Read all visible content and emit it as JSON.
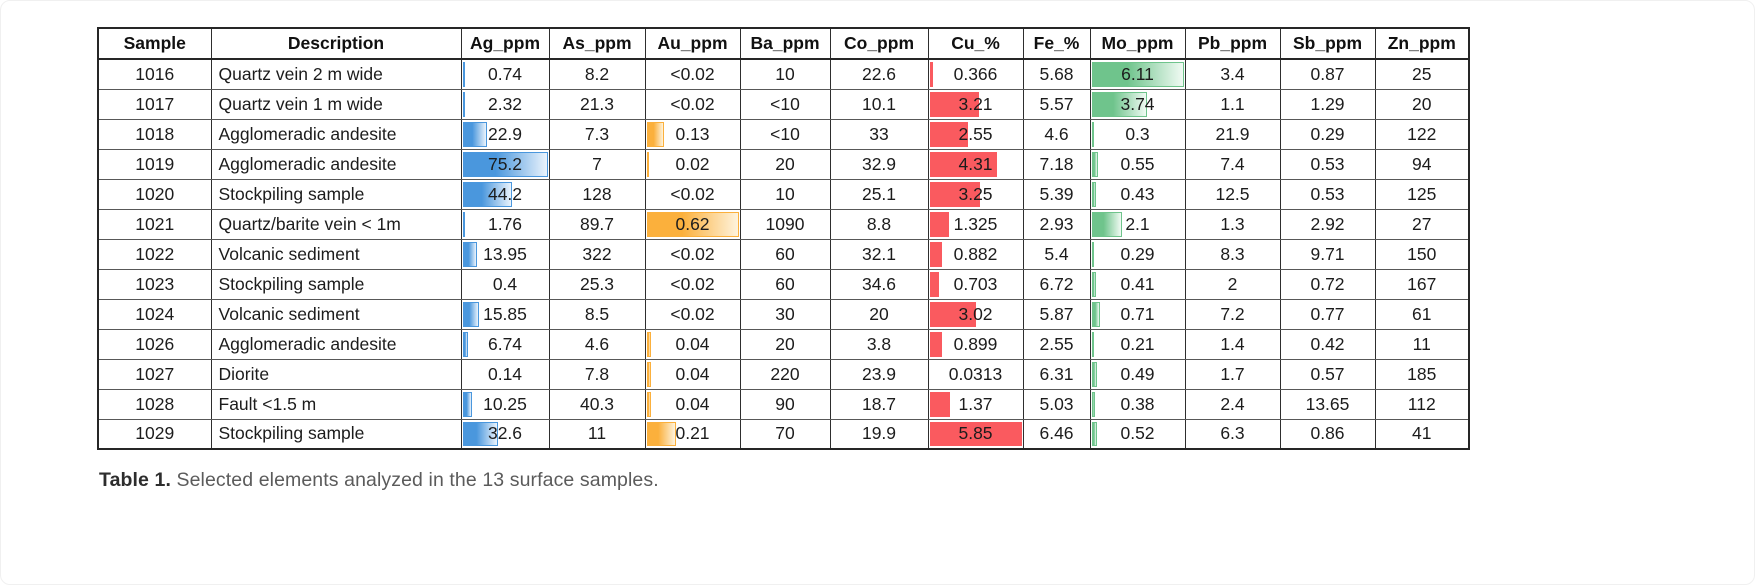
{
  "chart_data": {
    "type": "table",
    "title": "Table 1. Selected elements analyzed in the 13 surface samples.",
    "columns": [
      "Sample",
      "Description",
      "Ag_ppm",
      "As_ppm",
      "Au_ppm",
      "Ba_ppm",
      "Co_ppm",
      "Cu_%",
      "Fe_%",
      "Mo_ppm",
      "Pb_ppm",
      "Sb_ppm",
      "Zn_ppm"
    ],
    "rows": [
      [
        "1016",
        "Quartz vein 2 m wide",
        "0.74",
        "8.2",
        "<0.02",
        "10",
        "22.6",
        "0.366",
        "5.68",
        "6.11",
        "3.4",
        "0.87",
        "25"
      ],
      [
        "1017",
        "Quartz vein 1 m wide",
        "2.32",
        "21.3",
        "<0.02",
        "<10",
        "10.1",
        "3.21",
        "5.57",
        "3.74",
        "1.1",
        "1.29",
        "20"
      ],
      [
        "1018",
        "Agglomeradic andesite",
        "22.9",
        "7.3",
        "0.13",
        "<10",
        "33",
        "2.55",
        "4.6",
        "0.3",
        "21.9",
        "0.29",
        "122"
      ],
      [
        "1019",
        "Agglomeradic andesite",
        "75.2",
        "7",
        "0.02",
        "20",
        "32.9",
        "4.31",
        "7.18",
        "0.55",
        "7.4",
        "0.53",
        "94"
      ],
      [
        "1020",
        "Stockpiling sample",
        "44.2",
        "128",
        "<0.02",
        "10",
        "25.1",
        "3.25",
        "5.39",
        "0.43",
        "12.5",
        "0.53",
        "125"
      ],
      [
        "1021",
        "Quartz/barite vein < 1m",
        "1.76",
        "89.7",
        "0.62",
        "1090",
        "8.8",
        "1.325",
        "2.93",
        "2.1",
        "1.3",
        "2.92",
        "27"
      ],
      [
        "1022",
        "Volcanic sediment",
        "13.95",
        "322",
        "<0.02",
        "60",
        "32.1",
        "0.882",
        "5.4",
        "0.29",
        "8.3",
        "9.71",
        "150"
      ],
      [
        "1023",
        "Stockpiling sample",
        "0.4",
        "25.3",
        "<0.02",
        "60",
        "34.6",
        "0.703",
        "6.72",
        "0.41",
        "2",
        "0.72",
        "167"
      ],
      [
        "1024",
        "Volcanic sediment",
        "15.85",
        "8.5",
        "<0.02",
        "30",
        "20",
        "3.02",
        "5.87",
        "0.71",
        "7.2",
        "0.77",
        "61"
      ],
      [
        "1026",
        "Agglomeradic andesite",
        "6.74",
        "4.6",
        "0.04",
        "20",
        "3.8",
        "0.899",
        "2.55",
        "0.21",
        "1.4",
        "0.42",
        "11"
      ],
      [
        "1027",
        "Diorite",
        "0.14",
        "7.8",
        "0.04",
        "220",
        "23.9",
        "0.0313",
        "6.31",
        "0.49",
        "1.7",
        "0.57",
        "185"
      ],
      [
        "1028",
        "Fault <1.5 m",
        "10.25",
        "40.3",
        "0.04",
        "90",
        "18.7",
        "1.37",
        "5.03",
        "0.38",
        "2.4",
        "13.65",
        "112"
      ],
      [
        "1029",
        "Stockpiling sample",
        "32.6",
        "11",
        "0.21",
        "70",
        "19.9",
        "5.85",
        "6.46",
        "0.52",
        "6.3",
        "0.86",
        "41"
      ]
    ],
    "data_bars": {
      "Ag_ppm": {
        "style": "gradient",
        "color": "#4A97DD",
        "fade": "#EAF3FC",
        "max": 75.2
      },
      "Au_ppm": {
        "style": "gradient",
        "color": "#FBB03C",
        "fade": "#FEF3DC",
        "max": 0.62
      },
      "Cu_%": {
        "style": "solid",
        "color": "#FA5A5F",
        "fade": "#FDE2E3",
        "max": 5.85
      },
      "Mo_ppm": {
        "style": "gradient",
        "color": "#6FC48C",
        "fade": "#F0FAF3",
        "max": 6.11
      }
    },
    "legend_position": "none",
    "grid": true
  },
  "caption": {
    "label": "Table 1.",
    "text": " Selected elements analyzed in the 13 surface samples."
  }
}
